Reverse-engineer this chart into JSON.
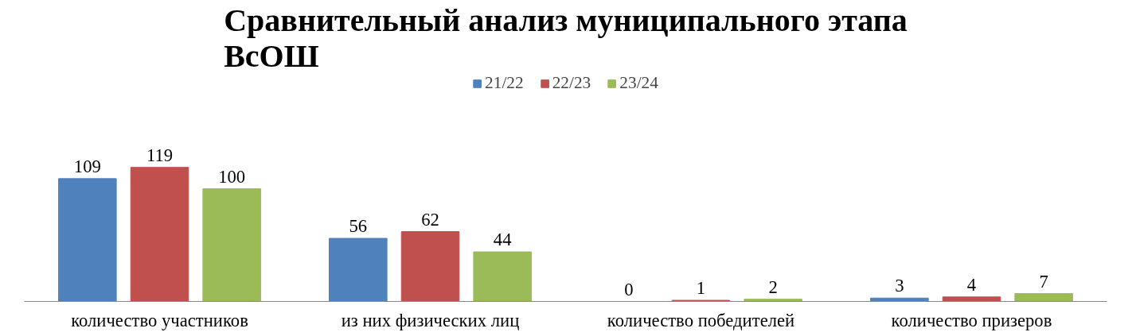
{
  "chart_data": {
    "type": "bar",
    "title": "Сравнительный анализ муниципального этапа ВсОШ",
    "categories": [
      "количество участников",
      "из них физических лиц",
      "количество победителей",
      "количество призеров"
    ],
    "series": [
      {
        "name": "21/22",
        "color": "#4f81bd",
        "values": [
          109,
          56,
          0,
          3
        ]
      },
      {
        "name": "22/23",
        "color": "#c0504d",
        "values": [
          119,
          62,
          1,
          4
        ]
      },
      {
        "name": "23/24",
        "color": "#9bbb59",
        "values": [
          100,
          44,
          2,
          7
        ]
      }
    ],
    "data_labels": true,
    "legend": "top"
  }
}
